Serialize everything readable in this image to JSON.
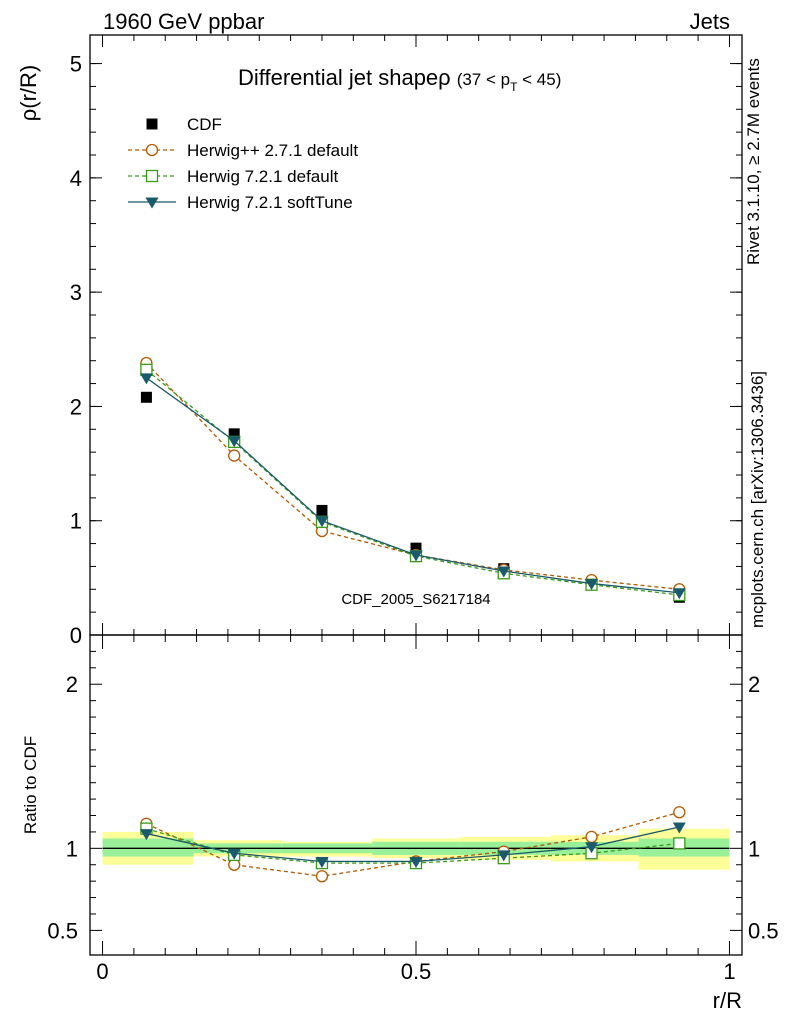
{
  "header": {
    "left": "1960 GeV ppbar",
    "right": "Jets"
  },
  "side_labels": {
    "rivet": "Rivet 3.1.10, ≥ 2.7M events",
    "mcplots": "mcplots.cern.ch [arXiv:1306.3436]"
  },
  "watermark": "CDF_2005_S6217184",
  "chart_data": [
    {
      "type": "line",
      "title": "Differential jet shapeρ",
      "title_suffix_parts": [
        "(37 < p",
        "T",
        " < 45)"
      ],
      "xlabel": "r/R",
      "ylabel": "ρ(r/R)",
      "xlim": [
        -0.02,
        1.02
      ],
      "ylim": [
        0,
        5.25
      ],
      "y_ticks": [
        {
          "v": 0,
          "label": "0"
        },
        {
          "v": 1,
          "label": "1"
        },
        {
          "v": 2,
          "label": "2"
        },
        {
          "v": 3,
          "label": "3"
        },
        {
          "v": 4,
          "label": "4"
        },
        {
          "v": 5,
          "label": "5"
        }
      ],
      "legend_position": "top-left",
      "x": [
        0.07,
        0.21,
        0.35,
        0.5,
        0.64,
        0.78,
        0.92
      ],
      "series": [
        {
          "name": "CDF",
          "color": "#000000",
          "marker": "square-filled",
          "line": "none",
          "values": [
            2.08,
            1.76,
            1.09,
            0.76,
            0.58,
            0.46,
            0.33
          ]
        },
        {
          "name": "Herwig++ 2.7.1 default",
          "color": "#b35900",
          "marker": "circle-open",
          "line": "dashed",
          "values": [
            2.38,
            1.57,
            0.91,
            0.7,
            0.57,
            0.48,
            0.4
          ]
        },
        {
          "name": "Herwig 7.2.1 default",
          "color": "#3a9a1a",
          "marker": "square-open",
          "line": "dashed",
          "values": [
            2.32,
            1.69,
            0.99,
            0.69,
            0.54,
            0.44,
            0.35
          ]
        },
        {
          "name": "Herwig 7.2.1 softTune",
          "color": "#1a5a6a",
          "marker": "triangle-down-filled",
          "line": "solid",
          "values": [
            2.25,
            1.7,
            1.0,
            0.7,
            0.56,
            0.45,
            0.37
          ]
        }
      ]
    },
    {
      "type": "line",
      "xlabel": "r/R",
      "ylabel": "Ratio to CDF",
      "xlim": [
        -0.02,
        1.02
      ],
      "ylim": [
        0.35,
        2.3
      ],
      "y_ticks": [
        {
          "v": 0.5,
          "label": "0.5"
        },
        {
          "v": 1,
          "label": "1"
        },
        {
          "v": 2,
          "label": "2"
        }
      ],
      "x_ticks": [
        {
          "v": 0,
          "label": "0"
        },
        {
          "v": 0.5,
          "label": "0.5"
        },
        {
          "v": 1,
          "label": "1"
        }
      ],
      "reference_line": 1,
      "bands": [
        {
          "x0": 0.0,
          "x1": 0.145,
          "inner": [
            0.95,
            1.06
          ],
          "outer": [
            0.9,
            1.1
          ]
        },
        {
          "x0": 0.145,
          "x1": 0.285,
          "inner": [
            0.97,
            1.03
          ],
          "outer": [
            0.95,
            1.05
          ]
        },
        {
          "x0": 0.285,
          "x1": 0.43,
          "inner": [
            0.97,
            1.03
          ],
          "outer": [
            0.95,
            1.04
          ]
        },
        {
          "x0": 0.43,
          "x1": 0.57,
          "inner": [
            0.96,
            1.04
          ],
          "outer": [
            0.94,
            1.06
          ]
        },
        {
          "x0": 0.57,
          "x1": 0.715,
          "inner": [
            0.96,
            1.04
          ],
          "outer": [
            0.93,
            1.07
          ]
        },
        {
          "x0": 0.715,
          "x1": 0.855,
          "inner": [
            0.96,
            1.04
          ],
          "outer": [
            0.92,
            1.08
          ]
        },
        {
          "x0": 0.855,
          "x1": 1.0,
          "inner": [
            0.95,
            1.06
          ],
          "outer": [
            0.87,
            1.12
          ]
        }
      ],
      "x": [
        0.07,
        0.21,
        0.35,
        0.5,
        0.64,
        0.78,
        0.92
      ],
      "series": [
        {
          "name": "Herwig++ 2.7.1 default",
          "color": "#b35900",
          "marker": "circle-open",
          "line": "dashed",
          "values": [
            1.15,
            0.9,
            0.83,
            0.92,
            0.98,
            1.07,
            1.22
          ]
        },
        {
          "name": "Herwig 7.2.1 default",
          "color": "#3a9a1a",
          "marker": "square-open",
          "line": "dashed",
          "values": [
            1.12,
            0.96,
            0.91,
            0.91,
            0.94,
            0.97,
            1.03
          ]
        },
        {
          "name": "Herwig 7.2.1 softTune",
          "color": "#1a5a6a",
          "marker": "triangle-down-filled",
          "line": "solid",
          "values": [
            1.09,
            0.97,
            0.92,
            0.92,
            0.96,
            1.01,
            1.13
          ]
        }
      ]
    }
  ]
}
